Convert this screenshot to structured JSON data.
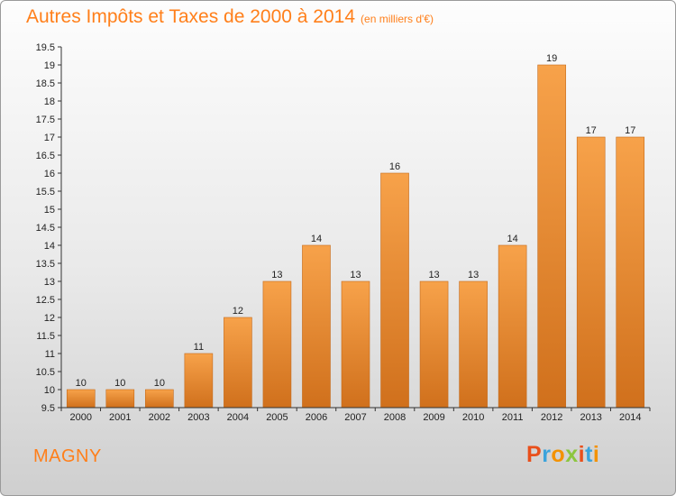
{
  "title": {
    "main": "Autres Impôts et Taxes de 2000 à 2014",
    "unit": "(en milliers d'€)"
  },
  "place": "MAGNY",
  "logo": {
    "letters": [
      "P",
      "r",
      "o",
      "x",
      "i",
      "t",
      "i"
    ],
    "colors": [
      "#e94f1b",
      "#3aa3dc",
      "#f39200",
      "#8cc63f",
      "#e94f1b",
      "#3aa3dc",
      "#f39200"
    ]
  },
  "chart_data": {
    "type": "bar",
    "categories": [
      "2000",
      "2001",
      "2002",
      "2003",
      "2004",
      "2005",
      "2006",
      "2007",
      "2008",
      "2009",
      "2010",
      "2011",
      "2012",
      "2013",
      "2014"
    ],
    "values": [
      10,
      10,
      10,
      11,
      12,
      13,
      14,
      13,
      16,
      13,
      13,
      14,
      19,
      17,
      17
    ],
    "ylim": [
      9.5,
      19.5
    ],
    "yticks": [
      "9.5",
      "10",
      "10.5",
      "11",
      "11.5",
      "12",
      "12.5",
      "13",
      "13.5",
      "14",
      "14.5",
      "15",
      "15.5",
      "16",
      "16.5",
      "17",
      "17.5",
      "18",
      "18.5",
      "19",
      "19.5"
    ],
    "grid": false,
    "bar_color_top": "#f7a24a",
    "bar_color_bottom": "#d0701c"
  }
}
